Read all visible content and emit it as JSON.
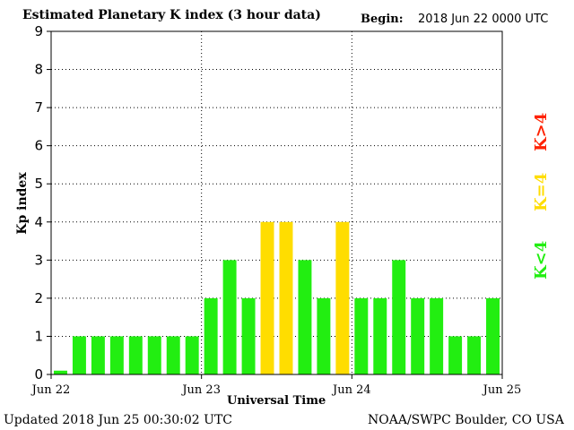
{
  "header": {
    "title": "Estimated Planetary K index (3 hour data)",
    "begin_label": "Begin:",
    "begin_value": "2018 Jun 22 0000 UTC"
  },
  "footer": {
    "updated": "Updated 2018 Jun 25 00:30:02 UTC",
    "source": "NOAA/SWPC Boulder, CO USA"
  },
  "legend": {
    "low": "K<4",
    "equal": "K=4",
    "high": "K>4"
  },
  "colors": {
    "low": "#22ee11",
    "equal": "#ffdd00",
    "high": "#ff2200",
    "text": "#000000"
  },
  "chart_data": {
    "type": "bar",
    "title": "Estimated Planetary K index (3 hour data)",
    "xlabel": "Universal Time",
    "ylabel": "Kp index",
    "ylim": [
      0,
      9
    ],
    "yticks": [
      "0",
      "1",
      "2",
      "3",
      "4",
      "5",
      "6",
      "7",
      "8",
      "9"
    ],
    "xticks": [
      "Jun 22",
      "Jun 23",
      "Jun 24",
      "Jun 25"
    ],
    "grid": true,
    "values": [
      0.1,
      1,
      1,
      1,
      1,
      1,
      1,
      1,
      2,
      3,
      2,
      4,
      4,
      3,
      2,
      4,
      2,
      2,
      3,
      2,
      2,
      1,
      1,
      2
    ]
  }
}
